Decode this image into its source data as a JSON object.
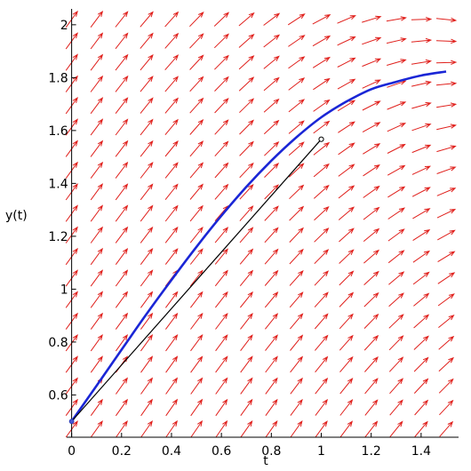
{
  "chart_data": {
    "type": "line",
    "title": "",
    "xlabel": "t",
    "ylabel": "y(t)",
    "xlim": [
      -0.02,
      1.55
    ],
    "ylim": [
      0.44,
      2.06
    ],
    "x_ticks": [
      0,
      0.2,
      0.4,
      0.6,
      0.8,
      1,
      1.2,
      1.4
    ],
    "x_tick_labels": [
      "0",
      "0.2",
      "0.4",
      "0.6",
      "0.8",
      "1",
      "1.2",
      "1.4"
    ],
    "y_ticks": [
      0.6,
      0.8,
      1,
      1.2,
      1.4,
      1.6,
      1.8,
      2
    ],
    "y_tick_labels": [
      "0.6",
      "0.8",
      "1",
      "1.2",
      "1.4",
      "1.6",
      "1.8",
      "2"
    ],
    "grid": false,
    "direction_field": {
      "t_range": [
        0,
        1.5
      ],
      "y_range": [
        0.47,
        2.02
      ],
      "columns": 16,
      "rows": 20,
      "color": "#e0201c"
    },
    "series": [
      {
        "color": "#1a26d6",
        "x": [
          0,
          0.1,
          0.2,
          0.3,
          0.4,
          0.5,
          0.6,
          0.7,
          0.8,
          0.9,
          1.0,
          1.1,
          1.2,
          1.3,
          1.4,
          1.5
        ],
        "y": [
          0.5,
          0.635,
          0.771,
          0.906,
          1.035,
          1.16,
          1.278,
          1.387,
          1.486,
          1.574,
          1.65,
          1.709,
          1.756,
          1.784,
          1.808,
          1.823
        ]
      },
      {
        "color": "#000000",
        "x": [
          0,
          1.0
        ],
        "y": [
          0.5,
          1.567
        ],
        "markers": "open-circle-end"
      }
    ]
  }
}
